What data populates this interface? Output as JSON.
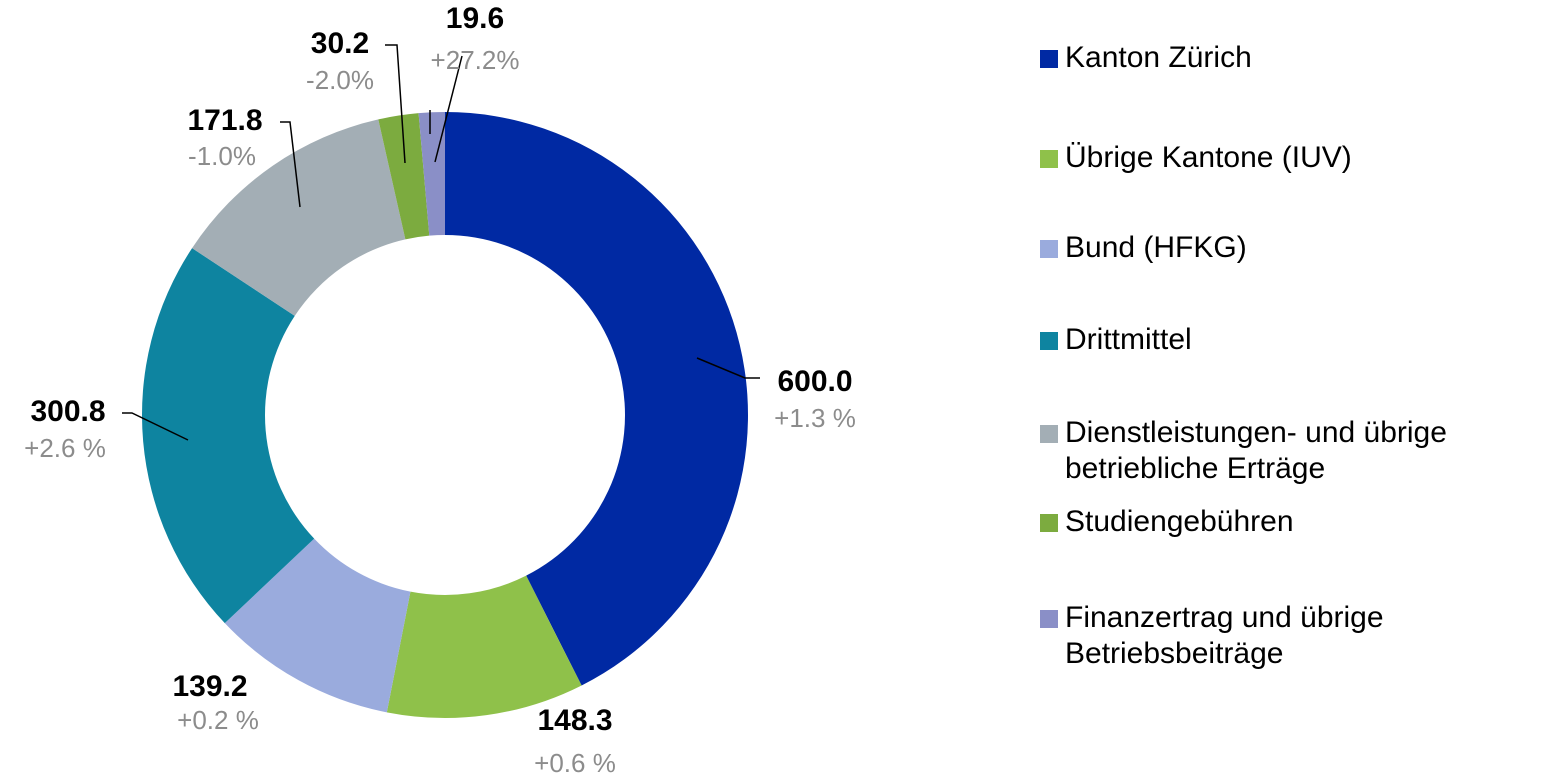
{
  "chart_data": {
    "type": "donut",
    "categories": [
      "Kanton Zürich",
      "Übrige Kantone (IUV)",
      "Bund (HFKG)",
      "Drittmittel",
      "Dienstleistungen- und übrige betriebliche Erträge",
      "Studiengebühren",
      "Finanzertrag und übrige Betriebsbeiträge"
    ],
    "values": [
      600.0,
      148.3,
      139.2,
      300.8,
      171.8,
      30.2,
      19.6
    ],
    "value_labels": [
      "600.0",
      "148.3",
      "139.2",
      "300.8",
      "171.8",
      "30.2",
      "19.6"
    ],
    "change_labels": [
      "+1.3 %",
      "+0.6 %",
      "+0.2 %",
      "+2.6 %",
      "-1.0%",
      "-2.0%",
      "+27.2%"
    ],
    "colors": [
      "#0029a3",
      "#8fc14a",
      "#9aabdd",
      "#0e84a0",
      "#a3aeb5",
      "#7cab3f",
      "#8a8fc7"
    ],
    "legend": "right"
  }
}
